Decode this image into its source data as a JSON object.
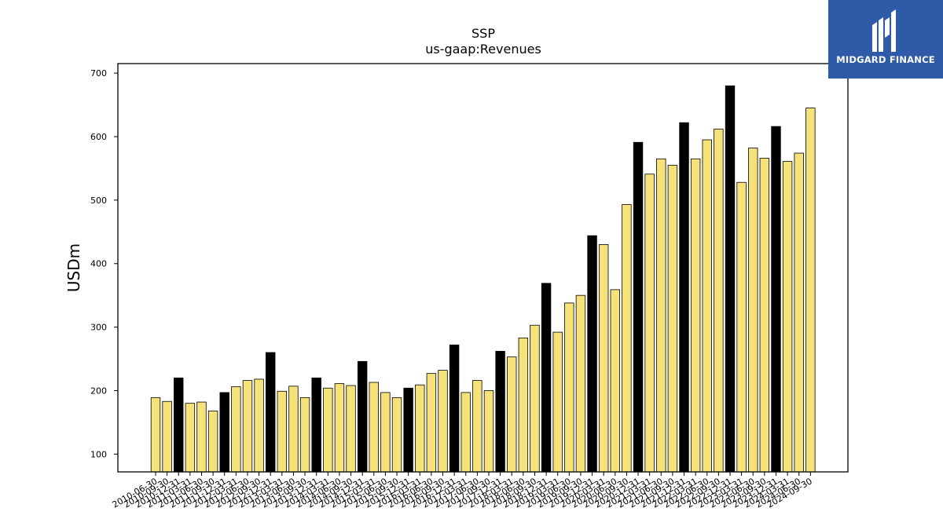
{
  "brand": {
    "name": "MIDGARD FINANCE"
  },
  "colors": {
    "quarter_bar": "#f5e27a",
    "fy_bar": "#000000",
    "edge": "#000000",
    "brand_bg": "#2f5aa8"
  },
  "chart_data": {
    "type": "bar",
    "title": "SSP",
    "subtitle": "us-gaap:Revenues",
    "ylabel": "USDm",
    "xlabel": "",
    "ylim": [
      72,
      715
    ],
    "yticks": [
      100,
      200,
      300,
      400,
      500,
      600,
      700
    ],
    "grid": false,
    "categories": [
      "2010-06-30",
      "2010-09-30",
      "2010-12-31",
      "2011-03-31",
      "2011-06-30",
      "2011-09-30",
      "2011-12-31",
      "2012-03-31",
      "2012-06-30",
      "2012-09-30",
      "2012-12-31",
      "2013-03-31",
      "2013-06-30",
      "2013-09-30",
      "2013-12-31",
      "2014-03-31",
      "2014-06-30",
      "2014-09-30",
      "2014-12-31",
      "2015-03-31",
      "2015-06-30",
      "2015-09-30",
      "2015-12-31",
      "2016-03-31",
      "2016-06-30",
      "2016-09-30",
      "2016-12-31",
      "2017-03-31",
      "2017-06-30",
      "2017-09-30",
      "2017-12-31",
      "2018-03-31",
      "2018-06-30",
      "2018-09-30",
      "2018-12-31",
      "2019-03-31",
      "2019-06-30",
      "2019-09-30",
      "2019-12-31",
      "2020-03-31",
      "2020-06-30",
      "2020-09-30",
      "2020-12-31",
      "2021-03-31",
      "2021-06-30",
      "2021-09-30",
      "2021-12-31",
      "2022-03-31",
      "2022-06-30",
      "2022-09-30",
      "2022-12-31",
      "2023-03-31",
      "2023-06-30",
      "2023-09-30",
      "2023-12-31",
      "2024-03-31",
      "2024-06-30",
      "2024-09-30"
    ],
    "values": [
      189,
      183,
      220,
      180,
      182,
      168,
      197,
      206,
      216,
      218,
      260,
      199,
      207,
      189,
      220,
      204,
      211,
      208,
      246,
      213,
      197,
      189,
      204,
      209,
      227,
      232,
      272,
      197,
      216,
      200,
      262,
      253,
      283,
      303,
      369,
      292,
      338,
      350,
      444,
      430,
      359,
      493,
      591,
      541,
      565,
      555,
      622,
      565,
      595,
      612,
      680,
      528,
      582,
      566,
      616,
      561,
      574,
      645
    ],
    "fiscal_year_flags": [
      0,
      0,
      1,
      0,
      0,
      0,
      1,
      0,
      0,
      0,
      1,
      0,
      0,
      0,
      1,
      0,
      0,
      0,
      1,
      0,
      0,
      0,
      1,
      0,
      0,
      0,
      1,
      0,
      0,
      0,
      1,
      0,
      0,
      0,
      1,
      0,
      0,
      0,
      1,
      0,
      0,
      0,
      1,
      0,
      0,
      0,
      1,
      0,
      0,
      0,
      1,
      0,
      0,
      0,
      1,
      0,
      0,
      0
    ]
  }
}
